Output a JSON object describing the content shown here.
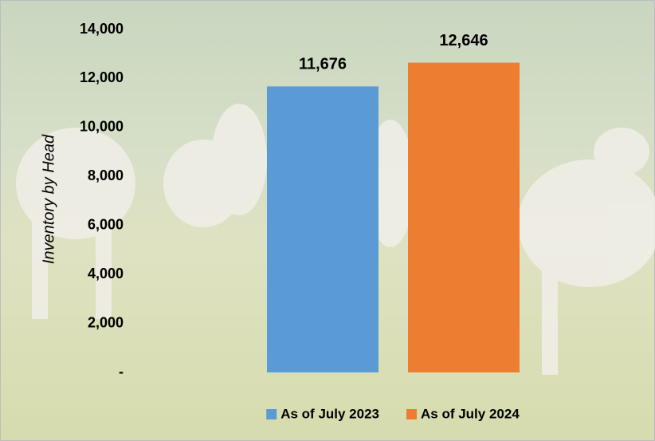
{
  "chart_data": {
    "type": "bar",
    "y_label": "Inventory by Head",
    "series": [
      {
        "name": "As of July 2023",
        "color": "#5b9bd5",
        "values": [
          11676
        ],
        "value_labels": [
          "11,676"
        ]
      },
      {
        "name": "As of July 2024",
        "color": "#ed7d31",
        "values": [
          12646
        ],
        "value_labels": [
          "12,646"
        ]
      }
    ],
    "ylim": [
      0,
      14000
    ],
    "yticks": [
      {
        "value": 0,
        "label": "-"
      },
      {
        "value": 2000,
        "label": "2,000"
      },
      {
        "value": 4000,
        "label": "4,000"
      },
      {
        "value": 6000,
        "label": "6,000"
      },
      {
        "value": 8000,
        "label": "8,000"
      },
      {
        "value": 10000,
        "label": "10,000"
      },
      {
        "value": 12000,
        "label": "12,000"
      },
      {
        "value": 14000,
        "label": "14,000"
      }
    ],
    "legend": "bottom"
  }
}
